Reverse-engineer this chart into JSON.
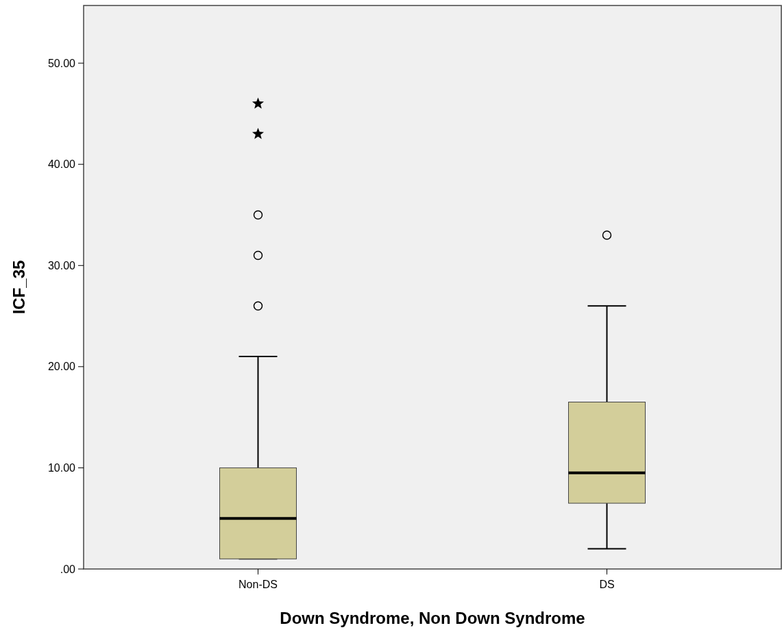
{
  "chart_data": {
    "type": "box",
    "xlabel": "Down Syndrome, Non Down Syndrome",
    "ylabel": "ICF_35",
    "categories": [
      "Non-DS",
      "DS"
    ],
    "ylim": [
      0,
      55.7
    ],
    "yticks": [
      {
        "value": 0,
        "label": ".00"
      },
      {
        "value": 10,
        "label": "10.00"
      },
      {
        "value": 20,
        "label": "20.00"
      },
      {
        "value": 30,
        "label": "30.00"
      },
      {
        "value": 40,
        "label": "40.00"
      },
      {
        "value": 50,
        "label": "50.00"
      }
    ],
    "grid": false,
    "series": [
      {
        "color": "#d3ce9a",
        "boxes": [
          {
            "low": 1,
            "q1": 1,
            "median": 5,
            "q3": 10,
            "high": 21,
            "outliers": [
              26,
              31,
              35
            ]
          },
          {
            "low": 2,
            "q1": 6.5,
            "median": 9.5,
            "q3": 16.5,
            "high": 26,
            "outliers": [
              33
            ]
          }
        ]
      },
      {
        "type": "scatter",
        "color": "#000000",
        "marker": "star",
        "x": [
          "Non-DS",
          "Non-DS"
        ],
        "values": [
          43,
          46
        ]
      }
    ]
  }
}
